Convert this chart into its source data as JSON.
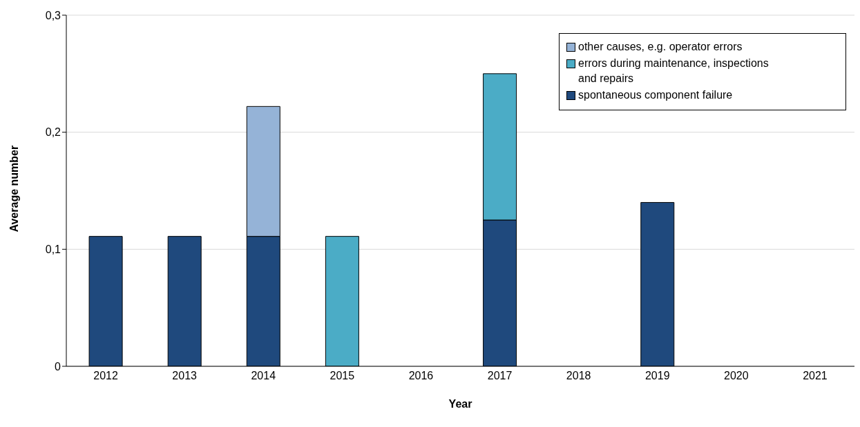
{
  "chart_data": {
    "type": "bar",
    "stacked": true,
    "xlabel": "Year",
    "ylabel": "Average number",
    "categories": [
      "2012",
      "2013",
      "2014",
      "2015",
      "2016",
      "2017",
      "2018",
      "2019",
      "2020",
      "2021"
    ],
    "series": [
      {
        "name": "spontaneous component failure",
        "color": "#1f497d",
        "values": [
          0.111,
          0.111,
          0.111,
          null,
          null,
          0.125,
          null,
          0.14,
          null,
          null
        ]
      },
      {
        "name": "errors during maintenance, inspections and repairs",
        "color": "#4bacc6",
        "values": [
          null,
          null,
          null,
          0.111,
          null,
          0.125,
          null,
          null,
          null,
          null
        ]
      },
      {
        "name": "other causes, e.g. operator errors",
        "color": "#95b3d7",
        "values": [
          null,
          null,
          0.111,
          null,
          null,
          null,
          null,
          null,
          null,
          null
        ]
      }
    ],
    "ylim": [
      0,
      0.3
    ],
    "yticks": [
      {
        "value": 0,
        "label": "0"
      },
      {
        "value": 0.1,
        "label": "0,1"
      },
      {
        "value": 0.2,
        "label": "0,2"
      },
      {
        "value": 0.3,
        "label": "0,3"
      }
    ],
    "grid": "y",
    "legend": "top right"
  }
}
